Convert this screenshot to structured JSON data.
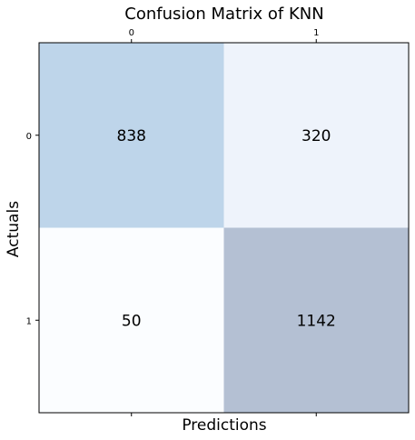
{
  "chart_data": {
    "type": "heatmap",
    "title": "Confusion Matrix of KNN",
    "xlabel": "Predictions",
    "ylabel": "Actuals",
    "x_categories": [
      "0",
      "1"
    ],
    "y_categories": [
      "0",
      "1"
    ],
    "values": [
      [
        838,
        320
      ],
      [
        50,
        1142
      ]
    ],
    "cell_colors": [
      [
        "#bed5ea",
        "#eef3fb"
      ],
      [
        "#fbfdff",
        "#b4c0d3"
      ]
    ],
    "x_tick_position": "top",
    "grid": false,
    "legend": "none"
  }
}
